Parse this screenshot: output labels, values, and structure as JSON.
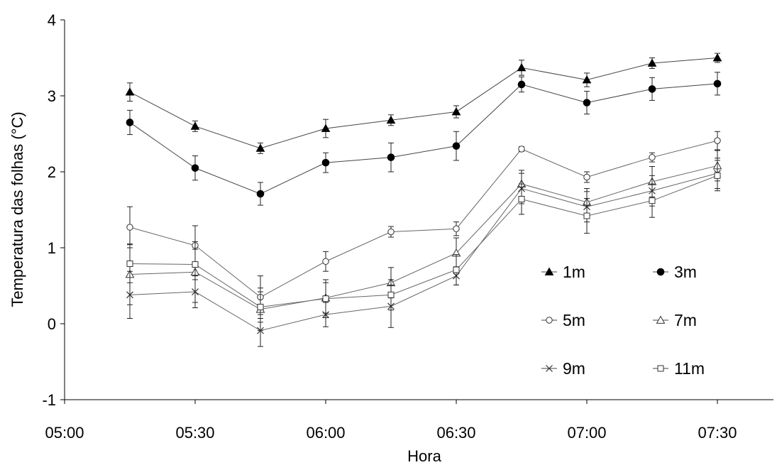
{
  "chart_data": {
    "type": "line",
    "xlabel": "Hora",
    "ylabel": "Temperatura das folhas (°C)",
    "x_ticks": [
      "05:00",
      "05:30",
      "06:00",
      "06:30",
      "07:00",
      "07:30"
    ],
    "y_ticks": [
      "-1",
      "0",
      "1",
      "2",
      "3",
      "4"
    ],
    "xlim": [
      "05:00",
      "07:45"
    ],
    "ylim": [
      -1,
      4
    ],
    "x": [
      "05:15",
      "05:30",
      "05:45",
      "06:00",
      "06:15",
      "06:30",
      "06:45",
      "07:00",
      "07:15",
      "07:30"
    ],
    "grid": false,
    "legend_position": "right, inside plot",
    "series": [
      {
        "name": "1m",
        "marker": "filled-triangle",
        "values": [
          3.05,
          2.6,
          2.31,
          2.57,
          2.68,
          2.79,
          3.37,
          3.21,
          3.43,
          3.5
        ],
        "errors": [
          0.12,
          0.07,
          0.07,
          0.12,
          0.07,
          0.08,
          0.1,
          0.09,
          0.07,
          0.06
        ]
      },
      {
        "name": "3m",
        "marker": "filled-circle",
        "values": [
          2.65,
          2.05,
          1.71,
          2.12,
          2.19,
          2.34,
          3.15,
          2.91,
          3.09,
          3.16
        ],
        "errors": [
          0.16,
          0.16,
          0.15,
          0.13,
          0.19,
          0.19,
          0.1,
          0.15,
          0.15,
          0.15
        ]
      },
      {
        "name": "5m",
        "marker": "open-circle",
        "values": [
          1.27,
          1.03,
          0.35,
          0.82,
          1.21,
          1.25,
          2.3,
          1.93,
          2.19,
          2.41
        ],
        "errors": [
          0.27,
          0.26,
          0.28,
          0.13,
          0.07,
          0.09,
          0.03,
          0.07,
          0.06,
          0.12
        ]
      },
      {
        "name": "7m",
        "marker": "open-triangle",
        "values": [
          0.65,
          0.68,
          0.19,
          0.34,
          0.54,
          0.93,
          1.84,
          1.6,
          1.87,
          2.08
        ],
        "errors": [
          0.4,
          0.4,
          0.28,
          0.2,
          0.2,
          0.2,
          0.18,
          0.18,
          0.2,
          0.2
        ]
      },
      {
        "name": "9m",
        "marker": "x-cross",
        "values": [
          0.38,
          0.42,
          -0.09,
          0.12,
          0.23,
          0.63,
          1.78,
          1.54,
          1.75,
          1.98
        ],
        "errors": [
          0.31,
          0.21,
          0.21,
          0.16,
          0.28,
          0.12,
          0.2,
          0.2,
          0.2,
          0.2
        ]
      },
      {
        "name": "11m",
        "marker": "open-square",
        "values": [
          0.79,
          0.78,
          0.22,
          0.33,
          0.38,
          0.71,
          1.64,
          1.42,
          1.62,
          1.95
        ],
        "errors": [
          0.25,
          0.2,
          0.2,
          0.25,
          0.2,
          0.2,
          0.2,
          0.23,
          0.22,
          0.2
        ]
      }
    ]
  }
}
